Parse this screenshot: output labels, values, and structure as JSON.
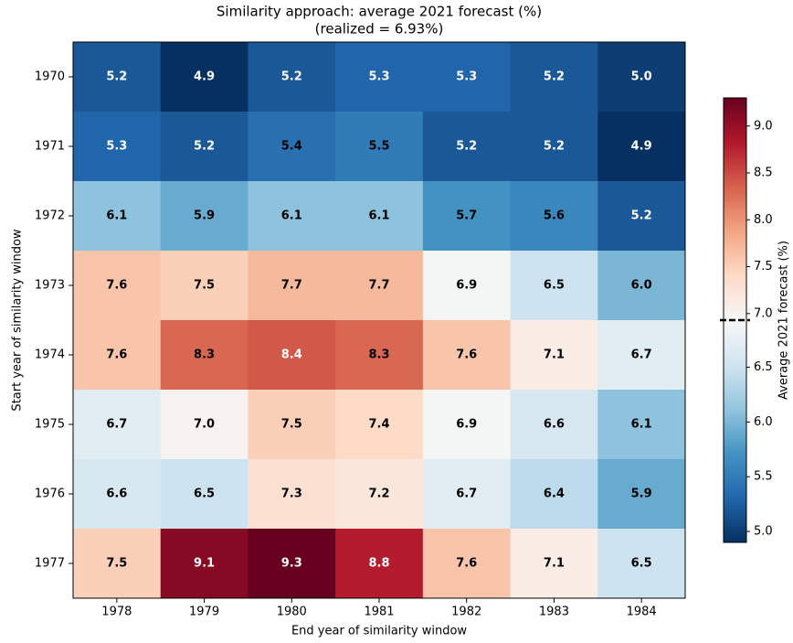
{
  "chart_data": {
    "type": "heatmap",
    "title": "Similarity approach: average 2021 forecast (%)",
    "subtitle": "(realized = 6.93%)",
    "xlabel": "End year of similarity window",
    "ylabel": "Start year of similarity window",
    "x_categories": [
      "1978",
      "1979",
      "1980",
      "1981",
      "1982",
      "1983",
      "1984"
    ],
    "y_categories": [
      "1970",
      "1971",
      "1972",
      "1973",
      "1974",
      "1975",
      "1976",
      "1977"
    ],
    "values": [
      [
        5.2,
        4.9,
        5.2,
        5.3,
        5.3,
        5.2,
        5.0
      ],
      [
        5.3,
        5.2,
        5.4,
        5.5,
        5.2,
        5.2,
        4.9
      ],
      [
        6.1,
        5.9,
        6.1,
        6.1,
        5.7,
        5.6,
        5.2
      ],
      [
        7.6,
        7.5,
        7.7,
        7.7,
        6.9,
        6.5,
        6.0
      ],
      [
        7.6,
        8.3,
        8.4,
        8.3,
        7.6,
        7.1,
        6.7
      ],
      [
        6.7,
        7.0,
        7.5,
        7.4,
        6.9,
        6.6,
        6.1
      ],
      [
        6.6,
        6.5,
        7.3,
        7.2,
        6.7,
        6.4,
        5.9
      ],
      [
        7.5,
        9.1,
        9.3,
        8.8,
        7.6,
        7.1,
        6.5
      ]
    ],
    "value_labels": [
      [
        "5.2",
        "4.9",
        "5.2",
        "5.3",
        "5.3",
        "5.2",
        "5.0"
      ],
      [
        "5.3",
        "5.2",
        "5.4",
        "5.5",
        "5.2",
        "5.2",
        "4.9"
      ],
      [
        "6.1",
        "5.9",
        "6.1",
        "6.1",
        "5.7",
        "5.6",
        "5.2"
      ],
      [
        "7.6",
        "7.5",
        "7.7",
        "7.7",
        "6.9",
        "6.5",
        "6.0"
      ],
      [
        "7.6",
        "8.3",
        "8.4",
        "8.3",
        "7.6",
        "7.1",
        "6.7"
      ],
      [
        "6.7",
        "7.0",
        "7.5",
        "7.4",
        "6.9",
        "6.6",
        "6.1"
      ],
      [
        "6.6",
        "6.5",
        "7.3",
        "7.2",
        "6.7",
        "6.4",
        "5.9"
      ],
      [
        "7.5",
        "9.1",
        "9.3",
        "8.8",
        "7.6",
        "7.1",
        "6.5"
      ]
    ],
    "colormap": "RdBu_r",
    "colorbar": {
      "label": "Average 2021 forecast (%)",
      "lim": [
        4.9,
        9.3
      ],
      "center": 6.93,
      "ticks": [
        {
          "value": 5.0,
          "label": "5.0"
        },
        5.5,
        {
          "value": 6.0,
          "label": "6.0"
        },
        6.5,
        {
          "value": 7.0,
          "label": "7.0"
        },
        7.5,
        {
          "value": 8.0,
          "label": "8.0"
        },
        8.5,
        {
          "value": 9.0,
          "label": "9.0"
        }
      ]
    }
  }
}
